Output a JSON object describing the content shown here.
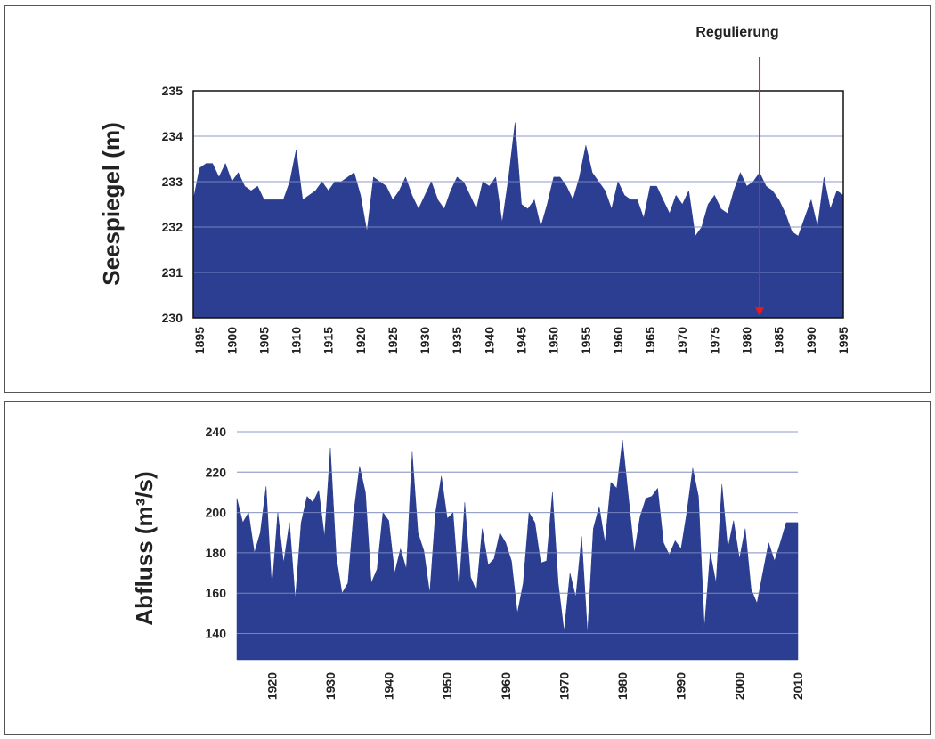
{
  "chart_data": [
    {
      "type": "area",
      "ylabel": "Seespiegel (m)",
      "ylim": [
        230,
        235
      ],
      "yticks": [
        230,
        231,
        232,
        233,
        234,
        235
      ],
      "xlim": [
        1894,
        1995
      ],
      "xticks": [
        1895,
        1900,
        1905,
        1910,
        1915,
        1920,
        1925,
        1930,
        1935,
        1940,
        1945,
        1950,
        1955,
        1960,
        1965,
        1970,
        1975,
        1980,
        1985,
        1990,
        1995
      ],
      "grid": true,
      "fill_color": "#2B3E91",
      "annotation": {
        "label": "Regulierung",
        "x": 1982,
        "color": "#E8191E"
      },
      "x": [
        1894,
        1895,
        1896,
        1897,
        1898,
        1899,
        1900,
        1901,
        1902,
        1903,
        1904,
        1905,
        1906,
        1907,
        1908,
        1909,
        1910,
        1911,
        1912,
        1913,
        1914,
        1915,
        1916,
        1917,
        1918,
        1919,
        1920,
        1921,
        1922,
        1923,
        1924,
        1925,
        1926,
        1927,
        1928,
        1929,
        1930,
        1931,
        1932,
        1933,
        1934,
        1935,
        1936,
        1937,
        1938,
        1939,
        1940,
        1941,
        1942,
        1943,
        1944,
        1945,
        1946,
        1947,
        1948,
        1949,
        1950,
        1951,
        1952,
        1953,
        1954,
        1955,
        1956,
        1957,
        1958,
        1959,
        1960,
        1961,
        1962,
        1963,
        1964,
        1965,
        1966,
        1967,
        1968,
        1969,
        1970,
        1971,
        1972,
        1973,
        1974,
        1975,
        1976,
        1977,
        1978,
        1979,
        1980,
        1981,
        1982,
        1983,
        1984,
        1985,
        1986,
        1987,
        1988,
        1989,
        1990,
        1991,
        1992,
        1993,
        1994,
        1995
      ],
      "y": [
        232.6,
        233.3,
        233.4,
        233.4,
        233.1,
        233.4,
        233.0,
        233.2,
        232.9,
        232.8,
        232.9,
        232.6,
        232.6,
        232.6,
        232.6,
        233.0,
        233.7,
        232.6,
        232.7,
        232.8,
        233.0,
        232.8,
        233.0,
        233.0,
        233.1,
        233.2,
        232.7,
        231.9,
        233.1,
        233.0,
        232.9,
        232.6,
        232.8,
        233.1,
        232.7,
        232.4,
        232.7,
        233.0,
        232.6,
        232.4,
        232.8,
        233.1,
        233.0,
        232.7,
        232.4,
        233.0,
        232.9,
        233.1,
        232.1,
        233.1,
        234.3,
        232.5,
        232.4,
        232.6,
        232.0,
        232.5,
        233.1,
        233.1,
        232.9,
        232.6,
        233.1,
        233.8,
        233.2,
        233.0,
        232.8,
        232.4,
        233.0,
        232.7,
        232.6,
        232.6,
        232.2,
        232.9,
        232.9,
        232.6,
        232.3,
        232.7,
        232.5,
        232.8,
        231.8,
        232.0,
        232.5,
        232.7,
        232.4,
        232.3,
        232.8,
        233.2,
        232.9,
        233.0,
        233.2,
        232.9,
        232.8,
        232.6,
        232.3,
        231.9,
        231.8,
        232.2,
        232.6,
        232.0,
        233.1,
        232.4,
        232.8,
        232.7
      ]
    },
    {
      "type": "area",
      "ylabel": "Abfluss (m³/s)",
      "ylim": [
        127,
        240
      ],
      "yticks": [
        140,
        160,
        180,
        200,
        220,
        240
      ],
      "xlim": [
        1914,
        2010
      ],
      "xticks": [
        1920,
        1930,
        1940,
        1950,
        1960,
        1970,
        1980,
        1990,
        2000,
        2010
      ],
      "grid": true,
      "fill_color": "#2B3E91",
      "x": [
        1914,
        1915,
        1916,
        1917,
        1918,
        1919,
        1920,
        1921,
        1922,
        1923,
        1924,
        1925,
        1926,
        1927,
        1928,
        1929,
        1930,
        1931,
        1932,
        1933,
        1934,
        1935,
        1936,
        1937,
        1938,
        1939,
        1940,
        1941,
        1942,
        1943,
        1944,
        1945,
        1946,
        1947,
        1948,
        1949,
        1950,
        1951,
        1952,
        1953,
        1954,
        1955,
        1956,
        1957,
        1958,
        1959,
        1960,
        1961,
        1962,
        1963,
        1964,
        1965,
        1966,
        1967,
        1968,
        1969,
        1970,
        1971,
        1972,
        1973,
        1974,
        1975,
        1976,
        1977,
        1978,
        1979,
        1980,
        1981,
        1982,
        1983,
        1984,
        1985,
        1986,
        1987,
        1988,
        1989,
        1990,
        1991,
        1992,
        1993,
        1994,
        1995,
        1996,
        1997,
        1998,
        1999,
        2000,
        2001,
        2002,
        2003,
        2004,
        2005,
        2006,
        2007,
        2008,
        2009,
        2010
      ],
      "y": [
        207,
        195,
        200,
        180,
        190,
        213,
        162,
        200,
        175,
        195,
        157,
        195,
        208,
        205,
        211,
        188,
        232,
        178,
        160,
        165,
        200,
        223,
        210,
        165,
        172,
        200,
        196,
        170,
        182,
        172,
        230,
        190,
        181,
        160,
        200,
        218,
        197,
        200,
        161,
        205,
        168,
        161,
        192,
        174,
        177,
        190,
        185,
        176,
        150,
        165,
        200,
        195,
        175,
        176,
        210,
        165,
        141,
        170,
        158,
        188,
        140,
        192,
        203,
        185,
        215,
        212,
        236,
        208,
        180,
        198,
        207,
        208,
        212,
        185,
        179,
        186,
        182,
        200,
        222,
        208,
        143,
        180,
        165,
        214,
        182,
        196,
        177,
        192,
        162,
        155,
        170,
        185,
        176,
        185,
        195,
        195,
        195
      ]
    }
  ]
}
